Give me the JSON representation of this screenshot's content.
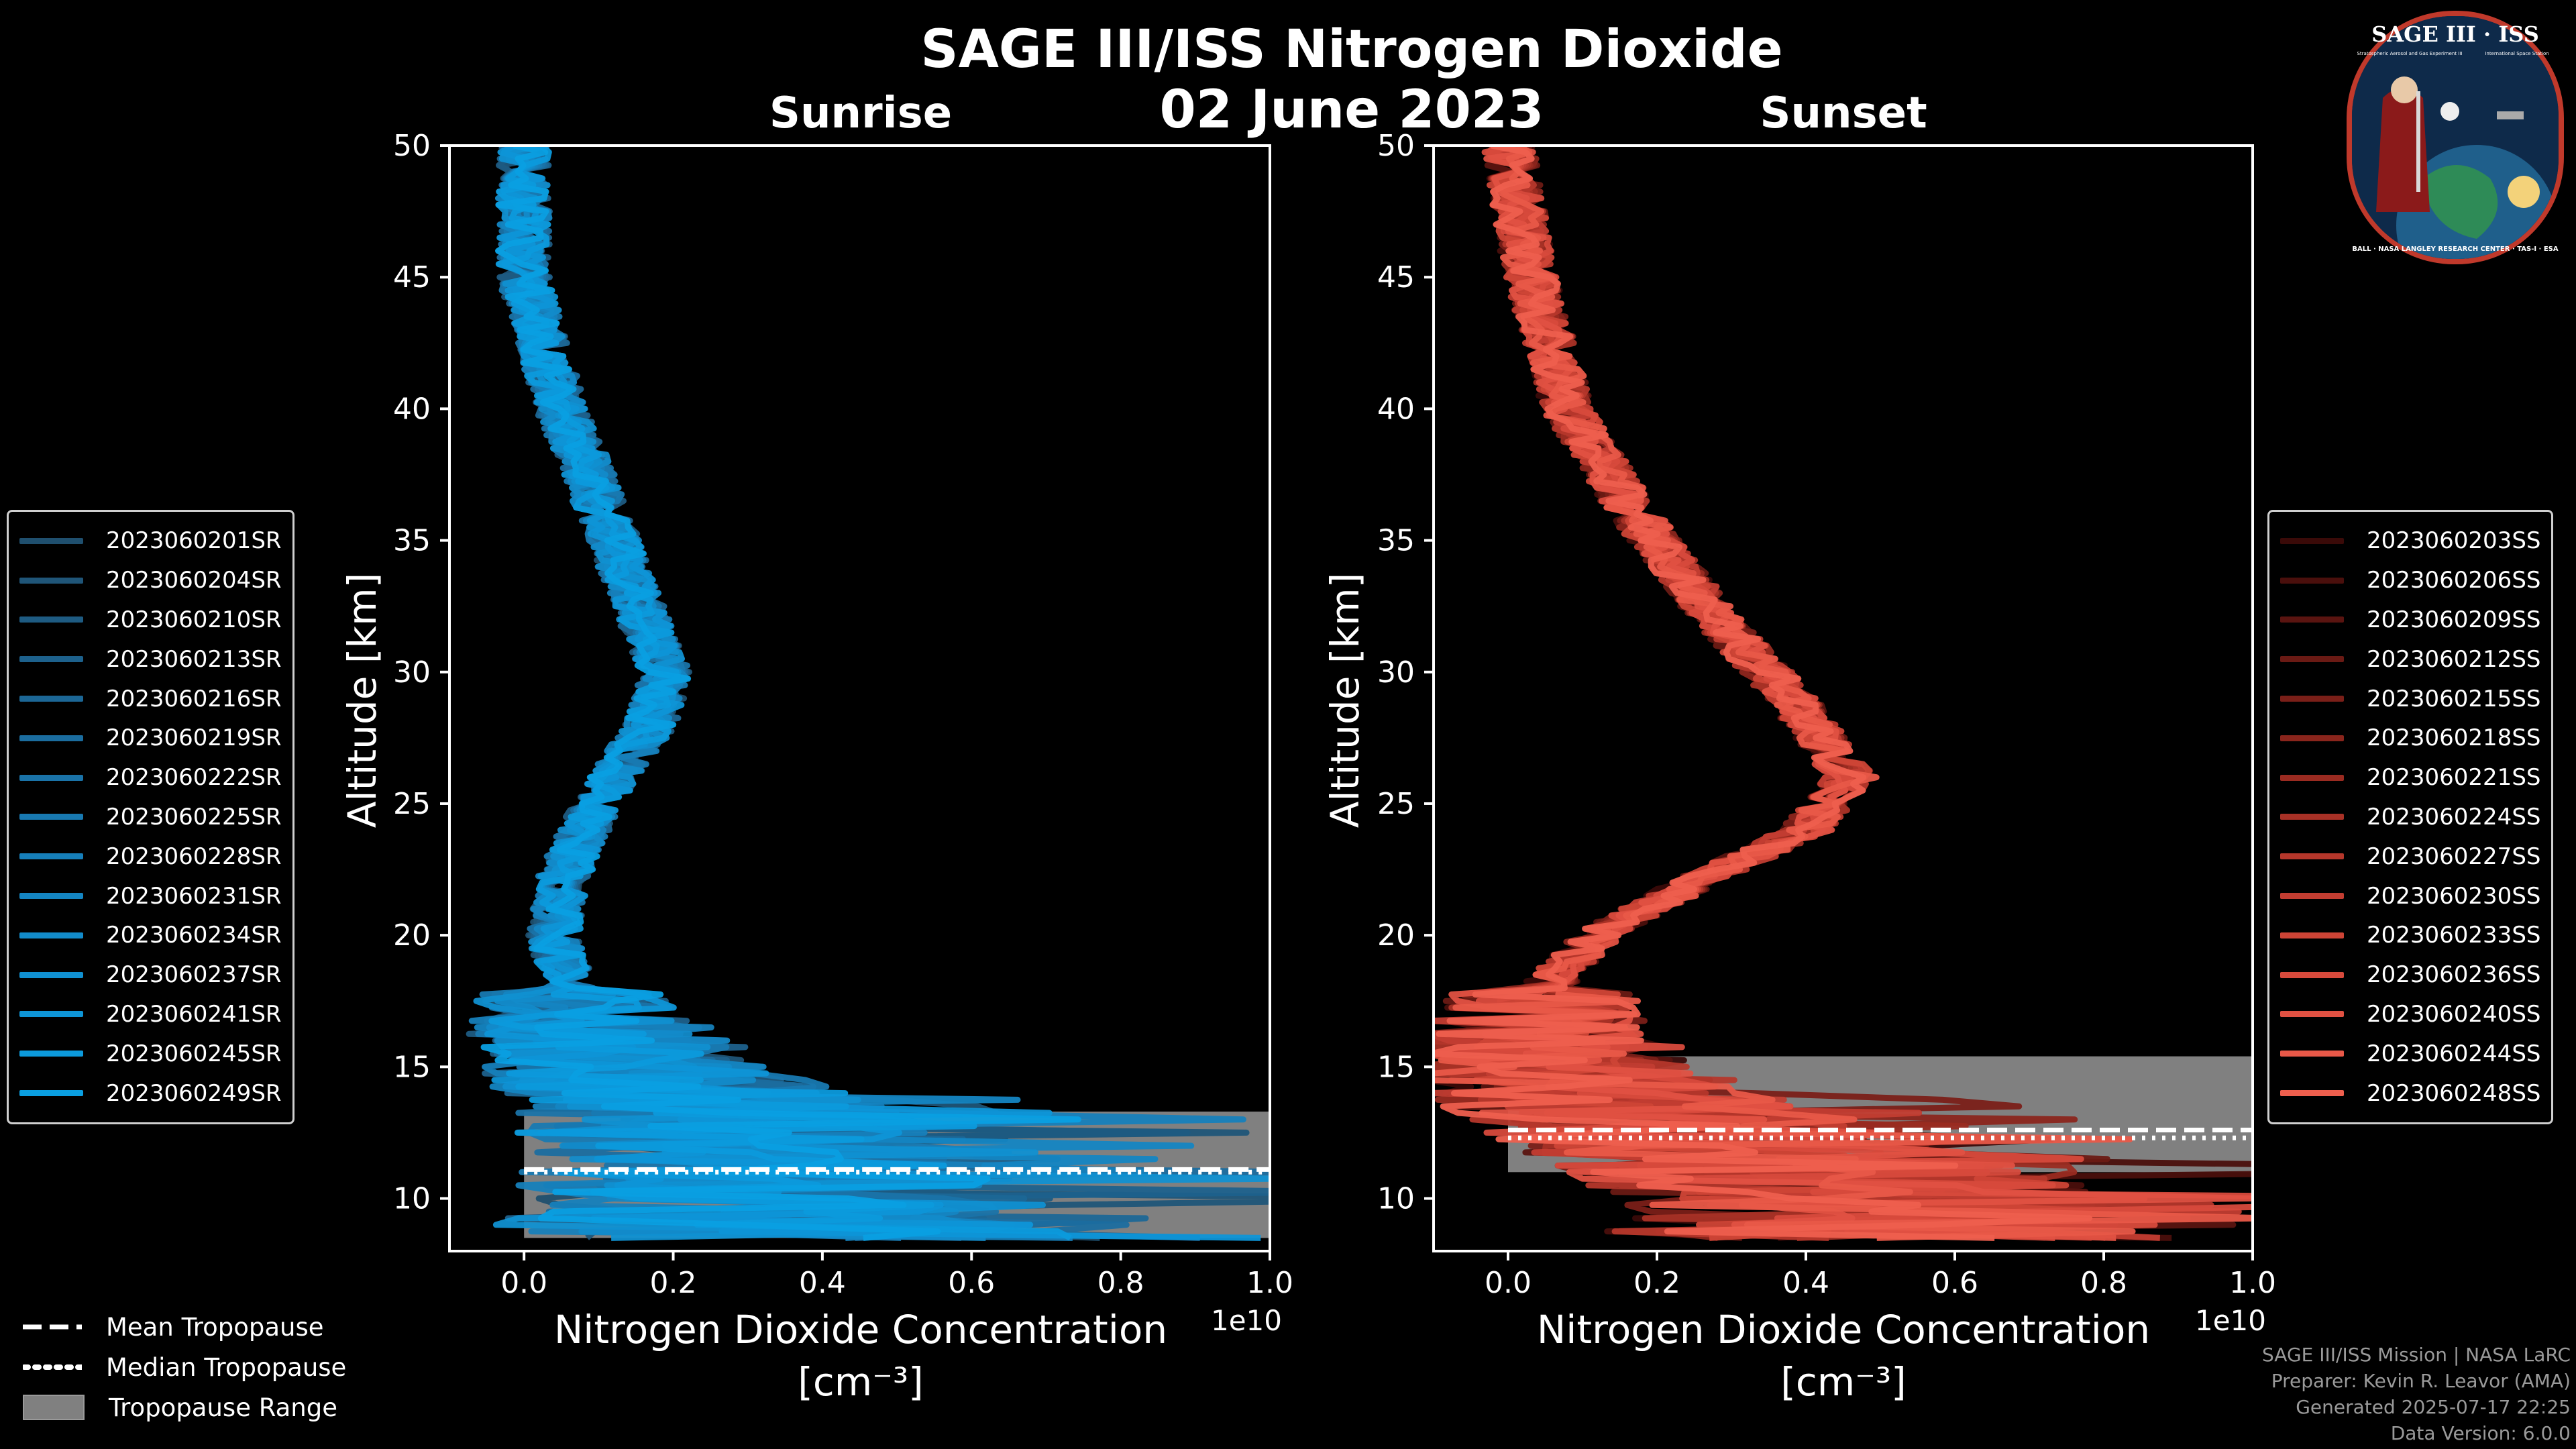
{
  "title": "SAGE III/ISS Nitrogen Dioxide",
  "date": "02 June 2023",
  "chart_data": [
    {
      "type": "line",
      "panel": "Sunrise",
      "title": "Sunrise",
      "xlabel": "Nitrogen Dioxide Concentration",
      "xunit": "[cm⁻³]",
      "ylabel": "Altitude [km]",
      "x_scale_label": "1e10",
      "xlim": [
        -0.1,
        1.0
      ],
      "ylim": [
        8,
        50
      ],
      "xticks": [
        "0.0",
        "0.2",
        "0.4",
        "0.6",
        "0.8",
        "1.0"
      ],
      "xtick_values": [
        0.0,
        0.2,
        0.4,
        0.6,
        0.8,
        1.0
      ],
      "yticks": [
        10,
        15,
        20,
        25,
        30,
        35,
        40,
        45,
        50
      ],
      "profile_mean": {
        "altitude": [
          50,
          45,
          40,
          38,
          35,
          32,
          30,
          28,
          26,
          24,
          22,
          20,
          18,
          16,
          14,
          12,
          10,
          9
        ],
        "value": [
          0.0,
          0.0,
          0.05,
          0.08,
          0.12,
          0.16,
          0.19,
          0.17,
          0.12,
          0.08,
          0.05,
          0.04,
          0.06,
          0.1,
          0.2,
          0.3,
          0.35,
          0.35
        ]
      },
      "tropopause": {
        "mean_km": 11.1,
        "median_km": 11.0,
        "range_km": [
          8.5,
          13.3
        ]
      },
      "series": [
        {
          "name": "2023060201SR",
          "color": "#1f4f6e"
        },
        {
          "name": "2023060204SR",
          "color": "#1f5578"
        },
        {
          "name": "2023060210SR",
          "color": "#1e5b82"
        },
        {
          "name": "2023060213SR",
          "color": "#1d618c"
        },
        {
          "name": "2023060216SR",
          "color": "#1c6796"
        },
        {
          "name": "2023060219SR",
          "color": "#1b6d9f"
        },
        {
          "name": "2023060222SR",
          "color": "#1a73a8"
        },
        {
          "name": "2023060225SR",
          "color": "#1879b1"
        },
        {
          "name": "2023060228SR",
          "color": "#167fba"
        },
        {
          "name": "2023060231SR",
          "color": "#1485c2"
        },
        {
          "name": "2023060234SR",
          "color": "#128bca"
        },
        {
          "name": "2023060237SR",
          "color": "#1090d1"
        },
        {
          "name": "2023060241SR",
          "color": "#0e95d7"
        },
        {
          "name": "2023060245SR",
          "color": "#0c9adc"
        },
        {
          "name": "2023060249SR",
          "color": "#0a9fe1"
        }
      ]
    },
    {
      "type": "line",
      "panel": "Sunset",
      "title": "Sunset",
      "xlabel": "Nitrogen Dioxide Concentration",
      "xunit": "[cm⁻³]",
      "ylabel": "Altitude [km]",
      "x_scale_label": "1e10",
      "xlim": [
        -0.1,
        1.0
      ],
      "ylim": [
        8,
        50
      ],
      "xticks": [
        "0.0",
        "0.2",
        "0.4",
        "0.6",
        "0.8",
        "1.0"
      ],
      "xtick_values": [
        0.0,
        0.2,
        0.4,
        0.6,
        0.8,
        1.0
      ],
      "yticks": [
        10,
        15,
        20,
        25,
        30,
        35,
        40,
        45,
        50
      ],
      "profile_mean": {
        "altitude": [
          50,
          45,
          40,
          36,
          32,
          29,
          26,
          24,
          22,
          20,
          18,
          16,
          14,
          12,
          10
        ],
        "value": [
          0.0,
          0.03,
          0.08,
          0.17,
          0.28,
          0.38,
          0.46,
          0.4,
          0.25,
          0.12,
          0.05,
          0.04,
          0.1,
          0.3,
          0.5
        ]
      },
      "tropopause": {
        "mean_km": 12.6,
        "median_km": 12.3,
        "range_km": [
          11.0,
          15.4
        ]
      },
      "series": [
        {
          "name": "2023060203SS",
          "color": "#3a0a08"
        },
        {
          "name": "2023060206SS",
          "color": "#4a0f0c"
        },
        {
          "name": "2023060209SS",
          "color": "#5a1410"
        },
        {
          "name": "2023060212SS",
          "color": "#6a1a14"
        },
        {
          "name": "2023060215SS",
          "color": "#7a1f18"
        },
        {
          "name": "2023060218SS",
          "color": "#8a251c"
        },
        {
          "name": "2023060221SS",
          "color": "#9a2b21"
        },
        {
          "name": "2023060224SS",
          "color": "#a83126"
        },
        {
          "name": "2023060227SS",
          "color": "#b5372b"
        },
        {
          "name": "2023060230SS",
          "color": "#c23d31"
        },
        {
          "name": "2023060233SS",
          "color": "#cd4436"
        },
        {
          "name": "2023060236SS",
          "color": "#d74a3c"
        },
        {
          "name": "2023060240SS",
          "color": "#e05142"
        },
        {
          "name": "2023060244SS",
          "color": "#e85848"
        },
        {
          "name": "2023060248SS",
          "color": "#ee5f4e"
        }
      ]
    }
  ],
  "bottom_legend": {
    "mean": "Mean Tropopause",
    "median": "Median Tropopause",
    "range": "Tropopause Range"
  },
  "credits": {
    "line1": "SAGE III/ISS Mission | NASA LaRC",
    "line2": "Preparer: Kevin R. Leavor (AMA)",
    "line3": "Generated 2025-07-17 22:25",
    "line4": "Data Version: 6.0.0"
  },
  "logo": {
    "top_text": "SAGE III · ISS",
    "bottom_text": "BALL · NASA LANGLEY RESEARCH CENTER · TAS-I · ESA",
    "sub_left": "Stratospheric Aerosol and Gas Experiment III",
    "sub_right": "International Space Station"
  },
  "colors": {
    "sunrise_accent": "#1a9be0",
    "sunset_accent": "#e8574a",
    "tropopause_range": "#808080"
  }
}
